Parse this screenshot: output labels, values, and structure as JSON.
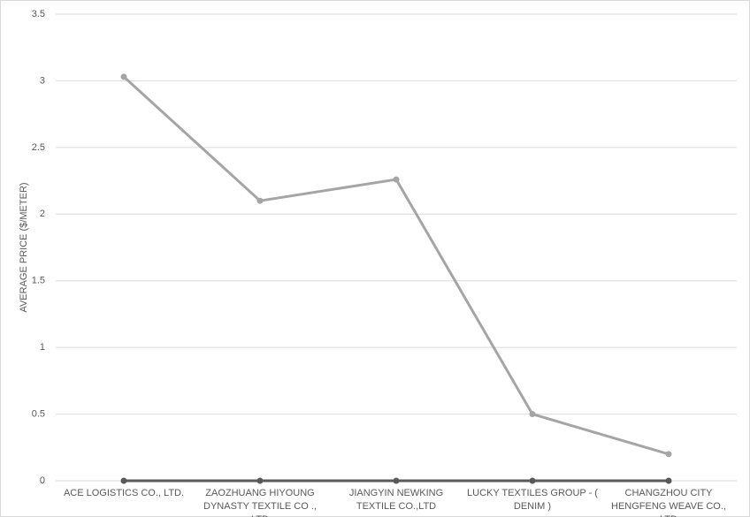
{
  "chart_data": {
    "type": "line",
    "y_label": "AVERAGE  PRICE ($/METER)",
    "categories": [
      "ACE LOGISTICS CO., LTD.",
      "ZAOZHUANG HIYOUNG DYNASTY TEXTILE CO ., LTD",
      "JIANGYIN NEWKING TEXTILE CO.,LTD",
      "LUCKY TEXTILES GROUP - ( DENIM )",
      "CHANGZHOU CITY HENGFENG WEAVE CO., LTD"
    ],
    "series": [
      {
        "color": "#a5a5a5",
        "values": [
          3.03,
          2.1,
          2.26,
          0.5,
          0.2
        ]
      },
      {
        "color": "#595959",
        "values": [
          0,
          0,
          0,
          0,
          0
        ]
      }
    ],
    "ylim": [
      0,
      3.5
    ],
    "yticks": [
      0,
      0.5,
      1,
      1.5,
      2,
      2.5,
      3,
      3.5
    ],
    "grid": true
  }
}
